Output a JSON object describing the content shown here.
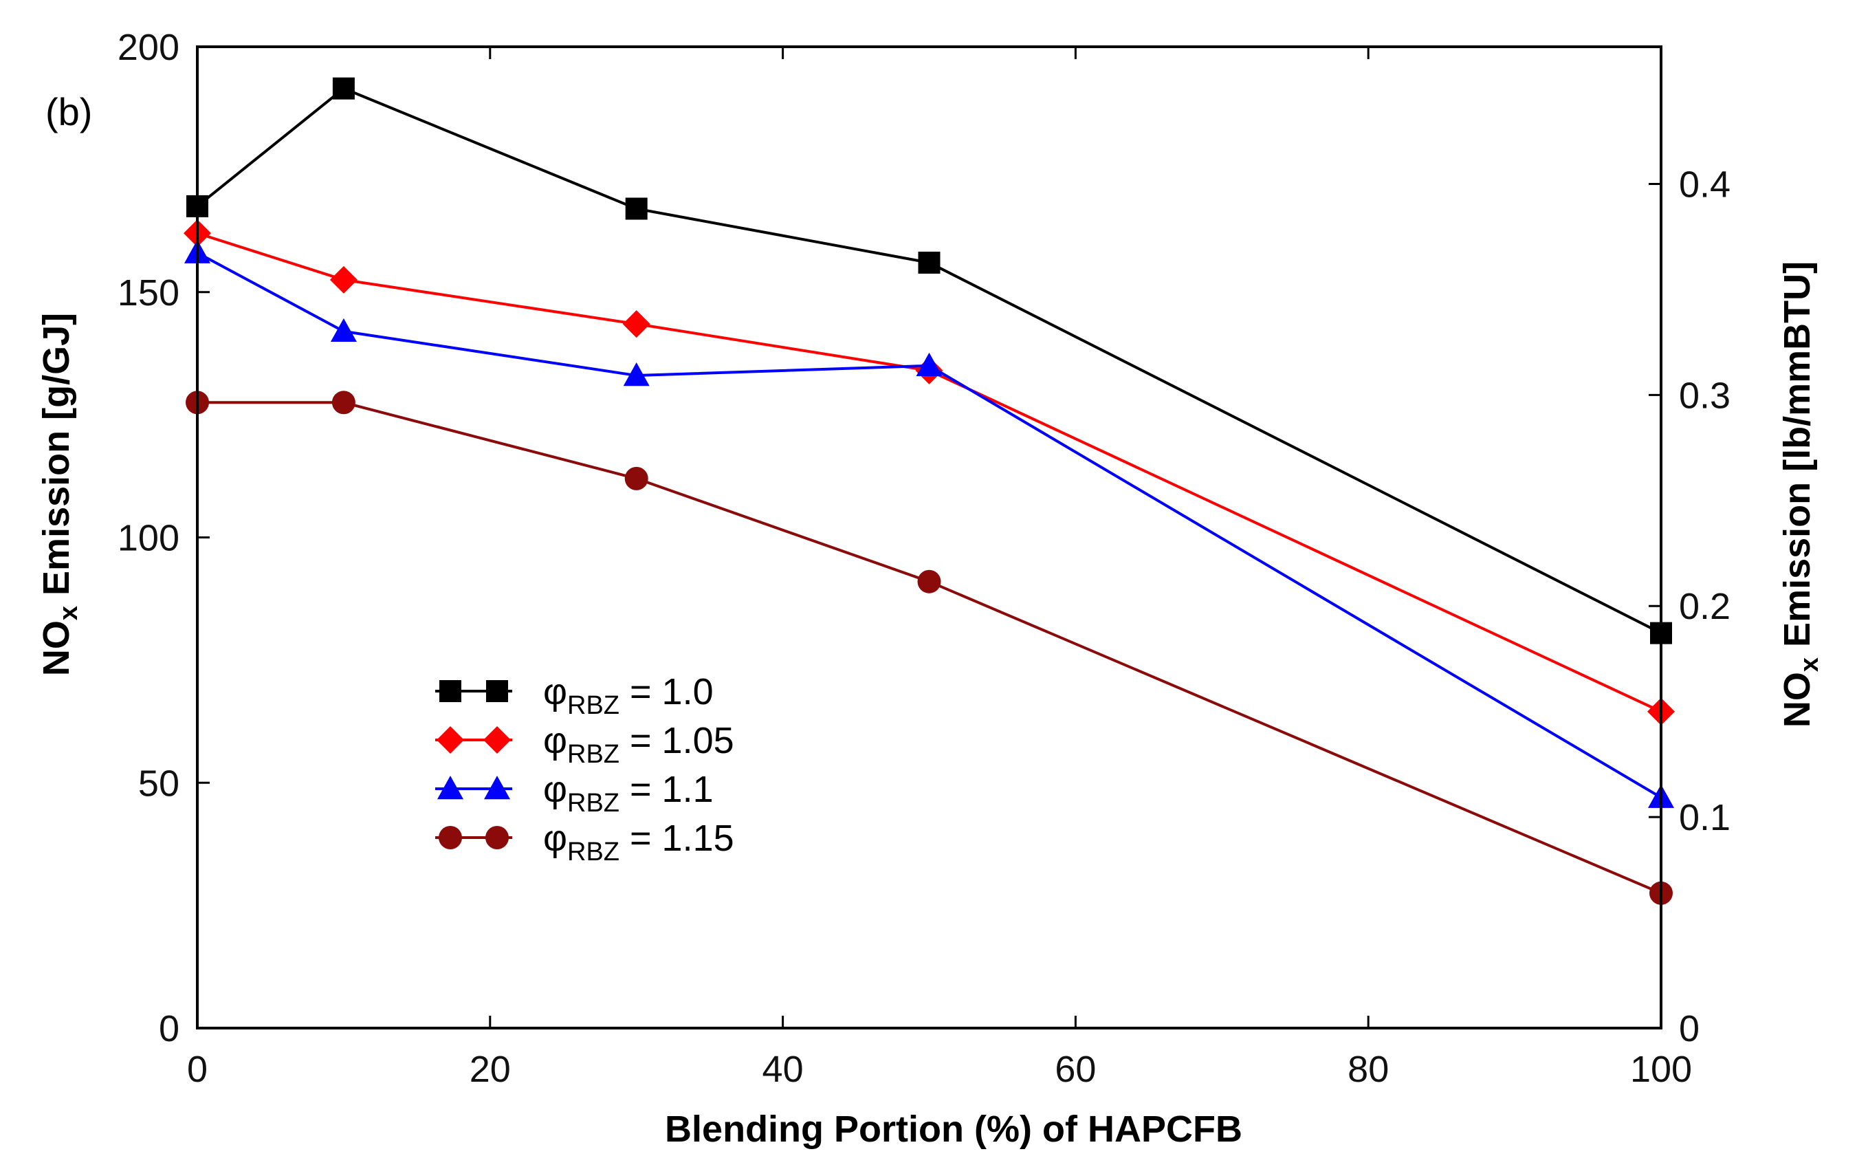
{
  "chart_data": {
    "type": "line",
    "panel_label": "(b)",
    "xlabel": "Blending Portion (%) of HAPCFB",
    "ylabel": {
      "main": "NO",
      "sub": "x",
      "rest": " Emission [g/GJ]"
    },
    "y2label": {
      "main": "NO",
      "sub": "x",
      "rest": " Emission [lb/mmBTU]"
    },
    "xlim": [
      0,
      100
    ],
    "ylim": [
      0,
      200
    ],
    "y2lim": [
      0,
      0.465
    ],
    "x_ticks": [
      "0",
      "20",
      "40",
      "60",
      "80",
      "100"
    ],
    "x_tick_values": [
      0,
      20,
      40,
      60,
      80,
      100
    ],
    "y_ticks": [
      "0",
      "50",
      "100",
      "150",
      "200"
    ],
    "y_tick_values": [
      0,
      50,
      100,
      150,
      200
    ],
    "y2_ticks": [
      "0",
      "0.1",
      "0.2",
      "0.3",
      "0.4"
    ],
    "y2_tick_values": [
      0,
      0.1,
      0.2,
      0.3,
      0.4
    ],
    "legend_position": "center-left",
    "series": [
      {
        "name": "φRBZ = 1.0",
        "symbol": "φ",
        "subscript": "RBZ",
        "value_label": " = 1.0",
        "color": "#000000",
        "marker": "square",
        "x": [
          0,
          10,
          30,
          50,
          100
        ],
        "y": [
          167.5,
          191.5,
          167,
          156,
          80.5
        ]
      },
      {
        "name": "φRBZ = 1.05",
        "symbol": "φ",
        "subscript": "RBZ",
        "value_label": " = 1.05",
        "color": "#ff0000",
        "marker": "diamond",
        "x": [
          0,
          10,
          30,
          50,
          100
        ],
        "y": [
          162,
          152.5,
          143.5,
          134,
          64.5
        ]
      },
      {
        "name": "φRBZ = 1.1",
        "symbol": "φ",
        "subscript": "RBZ",
        "value_label": " = 1.1",
        "color": "#0000ff",
        "marker": "triangle",
        "x": [
          0,
          10,
          30,
          50,
          100
        ],
        "y": [
          158,
          142,
          133,
          135,
          47
        ]
      },
      {
        "name": "φRBZ = 1.15",
        "symbol": "φ",
        "subscript": "RBZ",
        "value_label": " = 1.15",
        "color": "#8b0a0a",
        "marker": "circle",
        "x": [
          0,
          10,
          30,
          50,
          100
        ],
        "y": [
          127.5,
          127.5,
          112,
          91,
          27.5
        ]
      }
    ]
  }
}
